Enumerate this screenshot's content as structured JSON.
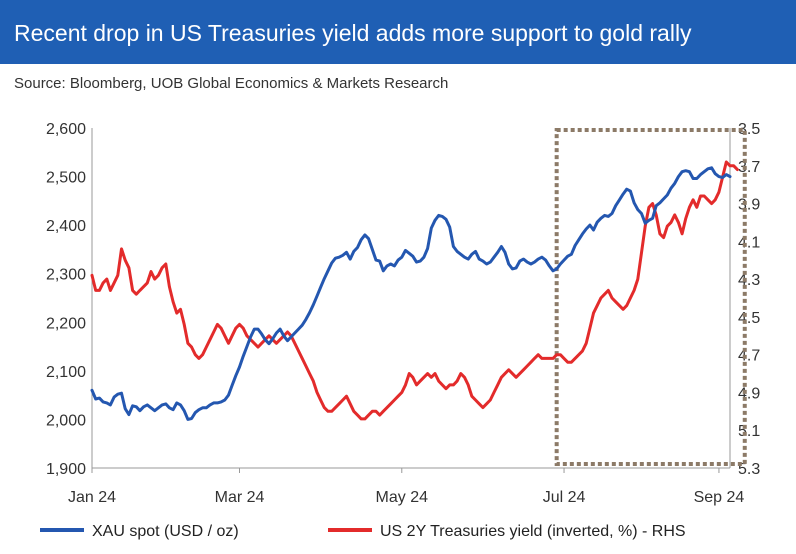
{
  "header": {
    "title": "Recent drop in US Treasuries yield adds more support to gold rally",
    "bg_color": "#1f5fb4"
  },
  "source": "Source: Bloomberg, UOB Global Economics & Markets Research",
  "chart_data": {
    "type": "line",
    "title": "Recent drop in US Treasuries yield adds more support to gold rally",
    "x_ticks": [
      "Jan 24",
      "Mar 24",
      "May 24",
      "Jul 24",
      "Sep 24"
    ],
    "x_tick_index": [
      0,
      40,
      84,
      128,
      170
    ],
    "left_axis": {
      "ylim": [
        1900,
        2600
      ],
      "ticks": [
        "1,900",
        "2,000",
        "2,100",
        "2,200",
        "2,300",
        "2,400",
        "2,500",
        "2,600"
      ],
      "tick_values": [
        1900,
        2000,
        2100,
        2200,
        2300,
        2400,
        2500,
        2600
      ]
    },
    "right_axis": {
      "ylim": [
        5.3,
        3.5
      ],
      "inverted": true,
      "ticks": [
        "3.5",
        "3.7",
        "3.9",
        "4.1",
        "4.3",
        "4.5",
        "4.7",
        "4.9",
        "5.1",
        "5.3"
      ],
      "tick_values": [
        3.5,
        3.7,
        3.9,
        4.1,
        4.3,
        4.5,
        4.7,
        4.9,
        5.1,
        5.3
      ]
    },
    "highlight_box_x_range_index": [
      126,
      177
    ],
    "grid": false,
    "legend_position": "bottom",
    "series": [
      {
        "name": "XAU spot (USD / oz)",
        "axis": "left",
        "color": "#2457b0",
        "values": [
          2060,
          2042,
          2044,
          2036,
          2034,
          2030,
          2046,
          2052,
          2054,
          2022,
          2010,
          2028,
          2026,
          2018,
          2026,
          2030,
          2024,
          2018,
          2024,
          2030,
          2032,
          2024,
          2020,
          2034,
          2030,
          2018,
          2000,
          2002,
          2014,
          2020,
          2024,
          2024,
          2030,
          2034,
          2034,
          2036,
          2040,
          2050,
          2070,
          2090,
          2108,
          2130,
          2150,
          2170,
          2186,
          2186,
          2176,
          2164,
          2156,
          2166,
          2178,
          2186,
          2172,
          2162,
          2170,
          2178,
          2186,
          2194,
          2206,
          2220,
          2236,
          2254,
          2272,
          2290,
          2306,
          2322,
          2332,
          2334,
          2338,
          2344,
          2330,
          2346,
          2354,
          2370,
          2380,
          2372,
          2350,
          2328,
          2326,
          2306,
          2316,
          2320,
          2316,
          2328,
          2334,
          2348,
          2342,
          2336,
          2324,
          2326,
          2334,
          2352,
          2394,
          2410,
          2420,
          2418,
          2412,
          2396,
          2356,
          2346,
          2340,
          2334,
          2330,
          2340,
          2346,
          2330,
          2326,
          2320,
          2324,
          2334,
          2344,
          2356,
          2344,
          2320,
          2310,
          2312,
          2326,
          2330,
          2324,
          2320,
          2324,
          2330,
          2334,
          2328,
          2316,
          2306,
          2310,
          2320,
          2328,
          2336,
          2340,
          2358,
          2370,
          2382,
          2392,
          2400,
          2390,
          2406,
          2414,
          2420,
          2418,
          2424,
          2440,
          2452,
          2464,
          2474,
          2470,
          2446,
          2432,
          2424,
          2404,
          2410,
          2414,
          2440,
          2446,
          2454,
          2462,
          2476,
          2486,
          2500,
          2510,
          2512,
          2510,
          2496,
          2496,
          2504,
          2510,
          2516,
          2518,
          2506,
          2500,
          2498,
          2504,
          2500
        ]
      },
      {
        "name": "US 2Y Treasuries yield (inverted, %) - RHS",
        "axis": "right",
        "color": "#e32b2b",
        "values": [
          4.28,
          4.36,
          4.36,
          4.32,
          4.3,
          4.36,
          4.32,
          4.28,
          4.14,
          4.2,
          4.24,
          4.36,
          4.38,
          4.36,
          4.34,
          4.32,
          4.26,
          4.3,
          4.28,
          4.24,
          4.22,
          4.34,
          4.42,
          4.48,
          4.46,
          4.54,
          4.64,
          4.66,
          4.7,
          4.72,
          4.7,
          4.66,
          4.62,
          4.58,
          4.54,
          4.56,
          4.6,
          4.64,
          4.6,
          4.56,
          4.54,
          4.56,
          4.6,
          4.62,
          4.64,
          4.66,
          4.64,
          4.62,
          4.6,
          4.62,
          4.64,
          4.62,
          4.6,
          4.58,
          4.6,
          4.64,
          4.68,
          4.72,
          4.76,
          4.8,
          4.84,
          4.9,
          4.94,
          4.98,
          5.0,
          5.0,
          4.98,
          4.96,
          4.94,
          4.92,
          4.96,
          5.0,
          5.02,
          5.04,
          5.04,
          5.02,
          5.0,
          5.0,
          5.02,
          5.0,
          4.98,
          4.96,
          4.94,
          4.92,
          4.9,
          4.86,
          4.8,
          4.82,
          4.86,
          4.84,
          4.82,
          4.8,
          4.82,
          4.8,
          4.84,
          4.86,
          4.88,
          4.86,
          4.86,
          4.84,
          4.8,
          4.82,
          4.86,
          4.92,
          4.94,
          4.96,
          4.98,
          4.96,
          4.94,
          4.9,
          4.86,
          4.82,
          4.8,
          4.78,
          4.8,
          4.82,
          4.8,
          4.78,
          4.76,
          4.74,
          4.72,
          4.7,
          4.72,
          4.72,
          4.72,
          4.72,
          4.7,
          4.7,
          4.72,
          4.74,
          4.74,
          4.72,
          4.7,
          4.68,
          4.64,
          4.56,
          4.48,
          4.44,
          4.4,
          4.38,
          4.36,
          4.4,
          4.42,
          4.44,
          4.46,
          4.44,
          4.4,
          4.36,
          4.3,
          4.16,
          4.02,
          3.92,
          3.9,
          3.96,
          4.06,
          4.08,
          4.02,
          4.0,
          3.96,
          4.0,
          4.06,
          3.98,
          3.92,
          3.88,
          3.92,
          3.86,
          3.86,
          3.88,
          3.9,
          3.88,
          3.84,
          3.76,
          3.68,
          3.7,
          3.7,
          3.72
        ]
      }
    ]
  }
}
